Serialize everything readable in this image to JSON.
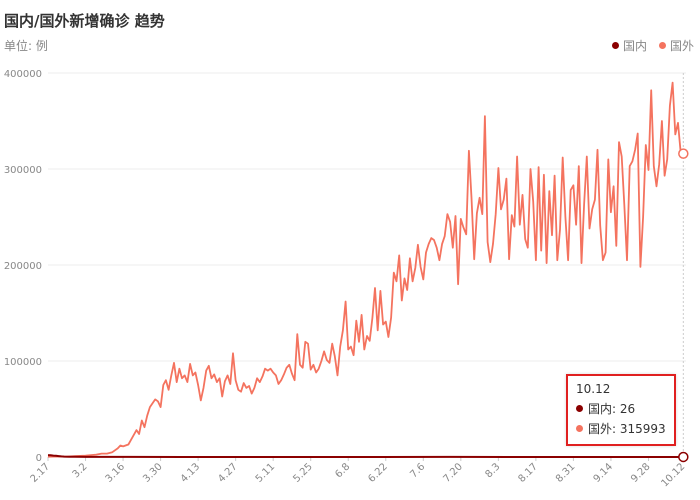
{
  "title": "国内/国外新增确诊 趋势",
  "unit_label": "单位: 例",
  "colors": {
    "domestic": "#8b0000",
    "foreign": "#f4735f",
    "grid": "#eeeeee",
    "axis_text": "#888888",
    "highlight": "#e02020"
  },
  "tooltip": {
    "date": "10.12",
    "domestic_label": "国内: 26",
    "foreign_label": "国外: 315993"
  },
  "chart_data": {
    "type": "line",
    "title": "国内/国外新增确诊 趋势",
    "ylabel": "单位: 例",
    "ylim": [
      0,
      400000
    ],
    "yticks": [
      0,
      100000,
      200000,
      300000,
      400000
    ],
    "xlim": [
      0,
      238
    ],
    "xtick_labels": [
      {
        "day": 0,
        "label": "2.17"
      },
      {
        "day": 14,
        "label": "3.2"
      },
      {
        "day": 28,
        "label": "3.16"
      },
      {
        "day": 42,
        "label": "3.30"
      },
      {
        "day": 56,
        "label": "4.13"
      },
      {
        "day": 70,
        "label": "4.27"
      },
      {
        "day": 84,
        "label": "5.11"
      },
      {
        "day": 98,
        "label": "5.25"
      },
      {
        "day": 112,
        "label": "6.8"
      },
      {
        "day": 126,
        "label": "6.22"
      },
      {
        "day": 140,
        "label": "7.6"
      },
      {
        "day": 154,
        "label": "7.20"
      },
      {
        "day": 168,
        "label": "8.3"
      },
      {
        "day": 182,
        "label": "8.17"
      },
      {
        "day": 196,
        "label": "8.31"
      },
      {
        "day": 210,
        "label": "9.14"
      },
      {
        "day": 224,
        "label": "9.28"
      },
      {
        "day": 237,
        "label": "10.12"
      }
    ],
    "grid": true,
    "legend_position": "top-right",
    "series": [
      {
        "name": "国内",
        "color": "#8b0000",
        "points": [
          [
            0,
            2000
          ],
          [
            1,
            1800
          ],
          [
            2,
            1500
          ],
          [
            3,
            1200
          ],
          [
            4,
            900
          ],
          [
            5,
            600
          ],
          [
            6,
            400
          ],
          [
            8,
            300
          ],
          [
            10,
            200
          ],
          [
            14,
            150
          ],
          [
            20,
            100
          ],
          [
            30,
            60
          ],
          [
            50,
            40
          ],
          [
            100,
            30
          ],
          [
            150,
            60
          ],
          [
            200,
            30
          ],
          [
            237,
            26
          ]
        ]
      },
      {
        "name": "国外",
        "color": "#f4735f",
        "points": [
          [
            0,
            300
          ],
          [
            4,
            500
          ],
          [
            7,
            400
          ],
          [
            10,
            800
          ],
          [
            14,
            1500
          ],
          [
            18,
            2500
          ],
          [
            20,
            3500
          ],
          [
            22,
            3500
          ],
          [
            24,
            5000
          ],
          [
            26,
            9000
          ],
          [
            27,
            12000
          ],
          [
            28,
            11000
          ],
          [
            30,
            13000
          ],
          [
            31,
            18000
          ],
          [
            33,
            28000
          ],
          [
            34,
            24000
          ],
          [
            35,
            38000
          ],
          [
            36,
            31000
          ],
          [
            37,
            43000
          ],
          [
            38,
            52000
          ],
          [
            40,
            60000
          ],
          [
            41,
            58000
          ],
          [
            42,
            52000
          ],
          [
            43,
            75000
          ],
          [
            44,
            80000
          ],
          [
            45,
            70000
          ],
          [
            46,
            85000
          ],
          [
            47,
            98000
          ],
          [
            48,
            78000
          ],
          [
            49,
            92000
          ],
          [
            50,
            82000
          ],
          [
            51,
            85000
          ],
          [
            52,
            78000
          ],
          [
            53,
            97000
          ],
          [
            54,
            85000
          ],
          [
            55,
            88000
          ],
          [
            56,
            75000
          ],
          [
            57,
            59000
          ],
          [
            58,
            72000
          ],
          [
            59,
            90000
          ],
          [
            60,
            95000
          ],
          [
            61,
            82000
          ],
          [
            62,
            86000
          ],
          [
            63,
            78000
          ],
          [
            64,
            82000
          ],
          [
            65,
            63000
          ],
          [
            66,
            79000
          ],
          [
            67,
            85000
          ],
          [
            68,
            76000
          ],
          [
            69,
            108000
          ],
          [
            70,
            80000
          ],
          [
            71,
            70000
          ],
          [
            72,
            68000
          ],
          [
            73,
            77000
          ],
          [
            74,
            72000
          ],
          [
            75,
            74000
          ],
          [
            76,
            66000
          ],
          [
            77,
            72000
          ],
          [
            78,
            82000
          ],
          [
            79,
            78000
          ],
          [
            80,
            84000
          ],
          [
            81,
            92000
          ],
          [
            82,
            90000
          ],
          [
            83,
            92000
          ],
          [
            84,
            88000
          ],
          [
            85,
            85000
          ],
          [
            86,
            76000
          ],
          [
            87,
            80000
          ],
          [
            88,
            86000
          ],
          [
            89,
            93000
          ],
          [
            90,
            96000
          ],
          [
            91,
            87000
          ],
          [
            92,
            80000
          ],
          [
            93,
            128000
          ],
          [
            94,
            96000
          ],
          [
            95,
            93000
          ],
          [
            96,
            120000
          ],
          [
            97,
            118000
          ],
          [
            98,
            91000
          ],
          [
            99,
            96000
          ],
          [
            100,
            88000
          ],
          [
            101,
            92000
          ],
          [
            102,
            100000
          ],
          [
            103,
            110000
          ],
          [
            104,
            101000
          ],
          [
            105,
            98000
          ],
          [
            106,
            118000
          ],
          [
            107,
            105000
          ],
          [
            108,
            85000
          ],
          [
            109,
            115000
          ],
          [
            110,
            132000
          ],
          [
            111,
            162000
          ],
          [
            112,
            112000
          ],
          [
            113,
            115000
          ],
          [
            114,
            106000
          ],
          [
            115,
            142000
          ],
          [
            116,
            120000
          ],
          [
            117,
            148000
          ],
          [
            118,
            112000
          ],
          [
            119,
            126000
          ],
          [
            120,
            121000
          ],
          [
            121,
            145000
          ],
          [
            122,
            176000
          ],
          [
            123,
            132000
          ],
          [
            124,
            173000
          ],
          [
            125,
            138000
          ],
          [
            126,
            141000
          ],
          [
            127,
            125000
          ],
          [
            128,
            145000
          ],
          [
            129,
            192000
          ],
          [
            130,
            183000
          ],
          [
            131,
            210000
          ],
          [
            132,
            163000
          ],
          [
            133,
            186000
          ],
          [
            134,
            174000
          ],
          [
            135,
            207000
          ],
          [
            136,
            183000
          ],
          [
            137,
            197000
          ],
          [
            138,
            221000
          ],
          [
            139,
            198000
          ],
          [
            140,
            185000
          ],
          [
            141,
            213000
          ],
          [
            142,
            222000
          ],
          [
            143,
            228000
          ],
          [
            144,
            226000
          ],
          [
            145,
            218000
          ],
          [
            146,
            205000
          ],
          [
            147,
            222000
          ],
          [
            148,
            230000
          ],
          [
            149,
            253000
          ],
          [
            150,
            245000
          ],
          [
            151,
            218000
          ],
          [
            152,
            251000
          ],
          [
            153,
            180000
          ],
          [
            154,
            248000
          ],
          [
            155,
            239000
          ],
          [
            156,
            232000
          ],
          [
            157,
            319000
          ],
          [
            158,
            270000
          ],
          [
            159,
            206000
          ],
          [
            160,
            254000
          ],
          [
            161,
            270000
          ],
          [
            162,
            253000
          ],
          [
            163,
            355000
          ],
          [
            164,
            224000
          ],
          [
            165,
            203000
          ],
          [
            166,
            222000
          ],
          [
            167,
            253000
          ],
          [
            168,
            301000
          ],
          [
            169,
            258000
          ],
          [
            170,
            268000
          ],
          [
            171,
            290000
          ],
          [
            172,
            206000
          ],
          [
            173,
            252000
          ],
          [
            174,
            240000
          ],
          [
            175,
            313000
          ],
          [
            176,
            242000
          ],
          [
            177,
            273000
          ],
          [
            178,
            227000
          ],
          [
            179,
            218000
          ],
          [
            180,
            300000
          ],
          [
            181,
            266000
          ],
          [
            182,
            205000
          ],
          [
            183,
            302000
          ],
          [
            184,
            215000
          ],
          [
            185,
            294000
          ],
          [
            186,
            202000
          ],
          [
            187,
            277000
          ],
          [
            188,
            231000
          ],
          [
            189,
            293000
          ],
          [
            190,
            205000
          ],
          [
            191,
            237000
          ],
          [
            192,
            312000
          ],
          [
            193,
            250000
          ],
          [
            194,
            205000
          ],
          [
            195,
            278000
          ],
          [
            196,
            283000
          ],
          [
            197,
            242000
          ],
          [
            198,
            303000
          ],
          [
            199,
            202000
          ],
          [
            200,
            263000
          ],
          [
            201,
            313000
          ],
          [
            202,
            238000
          ],
          [
            203,
            258000
          ],
          [
            204,
            268000
          ],
          [
            205,
            320000
          ],
          [
            206,
            241000
          ],
          [
            207,
            205000
          ],
          [
            208,
            213000
          ],
          [
            209,
            310000
          ],
          [
            210,
            255000
          ],
          [
            211,
            282000
          ],
          [
            212,
            220000
          ],
          [
            213,
            328000
          ],
          [
            214,
            313000
          ],
          [
            215,
            263000
          ],
          [
            216,
            205000
          ],
          [
            217,
            303000
          ],
          [
            218,
            308000
          ],
          [
            219,
            320000
          ],
          [
            220,
            337000
          ],
          [
            221,
            198000
          ],
          [
            222,
            250000
          ],
          [
            223,
            325000
          ],
          [
            224,
            299000
          ],
          [
            225,
            382000
          ],
          [
            226,
            303000
          ],
          [
            227,
            282000
          ],
          [
            228,
            305000
          ],
          [
            229,
            350000
          ],
          [
            230,
            293000
          ],
          [
            231,
            310000
          ],
          [
            232,
            366000
          ],
          [
            233,
            390000
          ],
          [
            234,
            336000
          ],
          [
            235,
            348000
          ],
          [
            236,
            318000
          ],
          [
            237,
            315993
          ]
        ]
      }
    ]
  }
}
